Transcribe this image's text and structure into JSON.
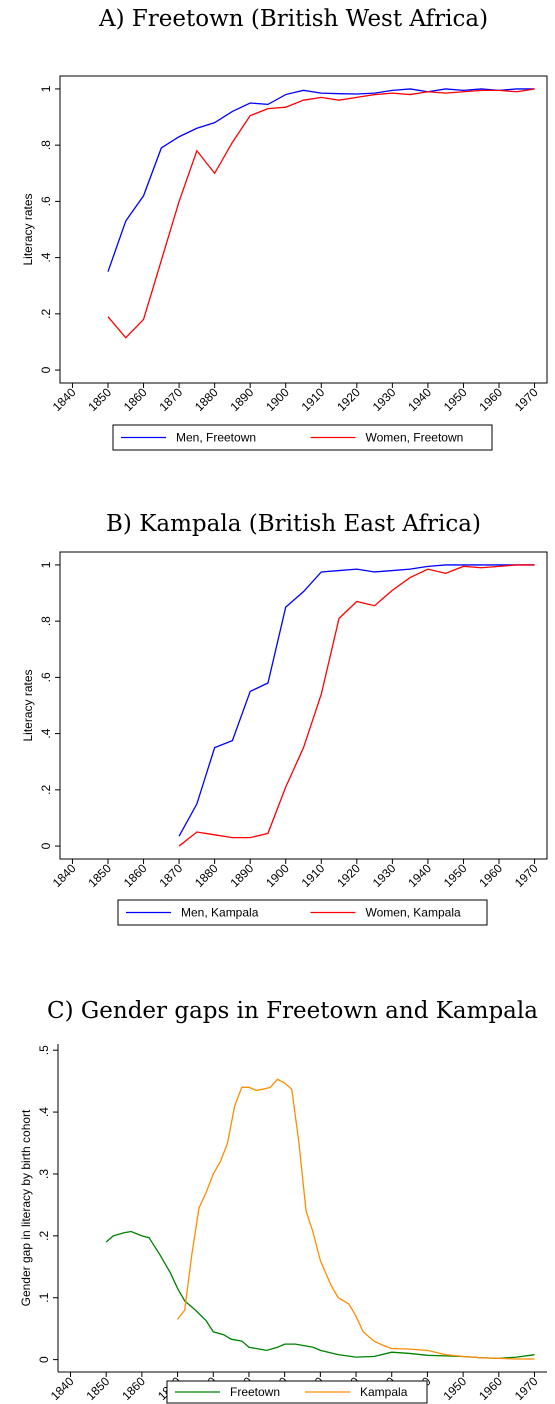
{
  "chart_data": [
    {
      "type": "line",
      "title": "A) Freetown (British West Africa)",
      "y_label": "Literacy rates",
      "frame": "box",
      "x": [
        1850,
        1855,
        1860,
        1865,
        1870,
        1875,
        1880,
        1885,
        1890,
        1895,
        1900,
        1905,
        1910,
        1915,
        1920,
        1925,
        1930,
        1935,
        1940,
        1945,
        1950,
        1955,
        1960,
        1965,
        1970
      ],
      "series": [
        {
          "name": "Men, Freetown",
          "color": "#0000ff",
          "values": [
            0.35,
            0.53,
            0.62,
            0.79,
            0.83,
            0.86,
            0.88,
            0.92,
            0.95,
            0.945,
            0.98,
            0.995,
            0.985,
            0.983,
            0.982,
            0.985,
            0.995,
            1.0,
            0.99,
            1.0,
            0.995,
            1.0,
            0.995,
            1.0,
            1.0
          ]
        },
        {
          "name": "Women, Freetown",
          "color": "#ff0000",
          "values": [
            0.19,
            0.115,
            0.18,
            0.39,
            0.6,
            0.78,
            0.7,
            0.81,
            0.905,
            0.93,
            0.935,
            0.96,
            0.97,
            0.96,
            0.97,
            0.98,
            0.985,
            0.98,
            0.99,
            0.985,
            0.99,
            0.995,
            0.995,
            0.99,
            1.0
          ]
        }
      ],
      "xlim": [
        1836.5,
        1973.5
      ],
      "xticks": [
        1840,
        1850,
        1860,
        1870,
        1880,
        1890,
        1900,
        1910,
        1920,
        1930,
        1940,
        1950,
        1960,
        1970
      ],
      "ylim": [
        -0.046,
        1.046
      ],
      "yticks": [
        0,
        {
          "value": 0.2,
          "label": ".2"
        },
        {
          "value": 0.4,
          "label": ".4"
        },
        {
          "value": 0.6,
          "label": ".6"
        },
        {
          "value": 0.8,
          "label": ".8"
        },
        1
      ]
    },
    {
      "type": "line",
      "title": "B) Kampala (British East Africa)",
      "y_label": "Literacy rates",
      "frame": "box",
      "x": [
        1850,
        1855,
        1860,
        1865,
        1870,
        1875,
        1880,
        1885,
        1890,
        1895,
        1900,
        1905,
        1910,
        1915,
        1920,
        1925,
        1930,
        1935,
        1940,
        1945,
        1950,
        1955,
        1960,
        1965,
        1970
      ],
      "series": [
        {
          "name": "Men, Kampala",
          "color": "#0000ff",
          "values": [
            null,
            null,
            null,
            null,
            0.035,
            0.15,
            0.35,
            0.375,
            0.55,
            0.58,
            0.85,
            0.905,
            0.975,
            0.98,
            0.985,
            0.975,
            0.98,
            0.985,
            0.995,
            1.0,
            1.0,
            1.0,
            1.0,
            1.0,
            1.0
          ]
        },
        {
          "name": "Women, Kampala",
          "color": "#ff0000",
          "values": [
            null,
            null,
            null,
            null,
            0,
            0.05,
            0.04,
            0.03,
            0.03,
            0.045,
            0.21,
            0.35,
            0.54,
            0.81,
            0.87,
            0.855,
            0.91,
            0.955,
            0.985,
            0.97,
            0.995,
            0.99,
            0.995,
            1.0,
            1.0
          ]
        }
      ],
      "xlim": [
        1836.5,
        1973.5
      ],
      "xticks": [
        1840,
        1850,
        1860,
        1870,
        1880,
        1890,
        1900,
        1910,
        1920,
        1930,
        1940,
        1950,
        1960,
        1970
      ],
      "ylim": [
        -0.046,
        1.046
      ],
      "yticks": [
        0,
        {
          "value": 0.2,
          "label": ".2"
        },
        {
          "value": 0.4,
          "label": ".4"
        },
        {
          "value": 0.6,
          "label": ".6"
        },
        {
          "value": 0.8,
          "label": ".8"
        },
        1
      ]
    },
    {
      "type": "line",
      "title": "C) Gender gaps in Freetown and Kampala",
      "y_label": "Gender gap in literacy by birth cohort",
      "frame": "axes",
      "series": [
        {
          "name": "Freetown",
          "color": "#008000",
          "x": [
            1850,
            1852,
            1855,
            1857,
            1860,
            1862,
            1865,
            1868,
            1870,
            1872,
            1875,
            1878,
            1880,
            1883,
            1885,
            1888,
            1890,
            1893,
            1895,
            1898,
            1900,
            1903,
            1905,
            1908,
            1910,
            1915,
            1920,
            1925,
            1930,
            1935,
            1940,
            1945,
            1950,
            1955,
            1960,
            1965,
            1970
          ],
          "values": [
            0.19,
            0.2,
            0.205,
            0.207,
            0.2,
            0.197,
            0.17,
            0.14,
            0.115,
            0.095,
            0.08,
            0.063,
            0.045,
            0.04,
            0.033,
            0.03,
            0.02,
            0.017,
            0.015,
            0.02,
            0.025,
            0.025,
            0.023,
            0.02,
            0.015,
            0.008,
            0.004,
            0.005,
            0.012,
            0.01,
            0.007,
            0.006,
            0.005,
            0.003,
            0.002,
            0.004,
            0.008
          ]
        },
        {
          "name": "Kampala",
          "color": "#ff8c00",
          "x": [
            1870,
            1872,
            1874,
            1876,
            1878,
            1880,
            1882,
            1884,
            1886,
            1888,
            1890,
            1892,
            1894,
            1896,
            1898,
            1900,
            1902,
            1904,
            1906,
            1908,
            1910,
            1913,
            1915,
            1918,
            1920,
            1922,
            1925,
            1928,
            1930,
            1935,
            1940,
            1945,
            1950,
            1955,
            1960,
            1965,
            1970
          ],
          "values": [
            0.065,
            0.08,
            0.17,
            0.245,
            0.27,
            0.3,
            0.32,
            0.35,
            0.41,
            0.44,
            0.44,
            0.435,
            0.437,
            0.44,
            0.453,
            0.447,
            0.437,
            0.35,
            0.24,
            0.205,
            0.16,
            0.12,
            0.1,
            0.09,
            0.07,
            0.045,
            0.03,
            0.022,
            0.018,
            0.017,
            0.015,
            0.008,
            0.005,
            0.003,
            0.002,
            0.001,
            0.001
          ]
        }
      ],
      "xlim": [
        1836.5,
        1973.5
      ],
      "xticks": [
        1840,
        1850,
        1860,
        1870,
        1880,
        1890,
        1900,
        1910,
        1920,
        1930,
        1940,
        1950,
        1960,
        1970
      ],
      "ylim": [
        -0.02,
        0.51
      ],
      "yticks": [
        0,
        {
          "value": 0.1,
          "label": ".1"
        },
        {
          "value": 0.2,
          "label": ".2"
        },
        {
          "value": 0.3,
          "label": ".3"
        },
        {
          "value": 0.4,
          "label": ".4"
        },
        {
          "value": 0.5,
          "label": ".5"
        }
      ]
    }
  ]
}
